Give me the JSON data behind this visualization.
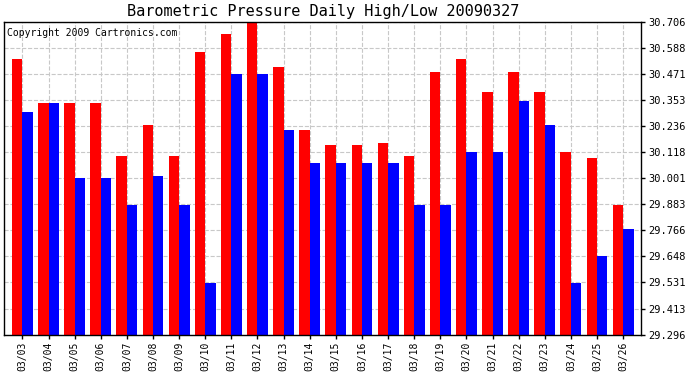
{
  "title": "Barometric Pressure Daily High/Low 20090327",
  "copyright": "Copyright 2009 Cartronics.com",
  "dates": [
    "03/03",
    "03/04",
    "03/05",
    "03/06",
    "03/07",
    "03/08",
    "03/09",
    "03/10",
    "03/11",
    "03/12",
    "03/13",
    "03/14",
    "03/15",
    "03/16",
    "03/17",
    "03/18",
    "03/19",
    "03/20",
    "03/21",
    "03/22",
    "03/23",
    "03/24",
    "03/25",
    "03/26"
  ],
  "highs": [
    30.54,
    30.34,
    30.34,
    30.34,
    30.1,
    30.24,
    30.1,
    30.57,
    30.65,
    30.7,
    30.5,
    30.22,
    30.15,
    30.15,
    30.16,
    30.1,
    30.48,
    30.54,
    30.39,
    30.48,
    30.39,
    30.12,
    30.09,
    29.88
  ],
  "lows": [
    30.3,
    30.34,
    30.0,
    30.0,
    29.88,
    30.01,
    29.88,
    29.53,
    30.47,
    30.47,
    30.22,
    30.07,
    30.07,
    30.07,
    30.07,
    29.88,
    29.88,
    30.12,
    30.12,
    30.35,
    30.24,
    29.53,
    29.65,
    29.77
  ],
  "ylim_min": 29.296,
  "ylim_max": 30.706,
  "yticks": [
    29.296,
    29.413,
    29.531,
    29.648,
    29.766,
    29.883,
    30.001,
    30.118,
    30.236,
    30.353,
    30.471,
    30.588,
    30.706
  ],
  "high_color": "#FF0000",
  "low_color": "#0000FF",
  "bg_color": "#FFFFFF",
  "grid_color": "#C8C8C8",
  "title_fontsize": 11,
  "copyright_fontsize": 7,
  "bar_width": 0.4
}
